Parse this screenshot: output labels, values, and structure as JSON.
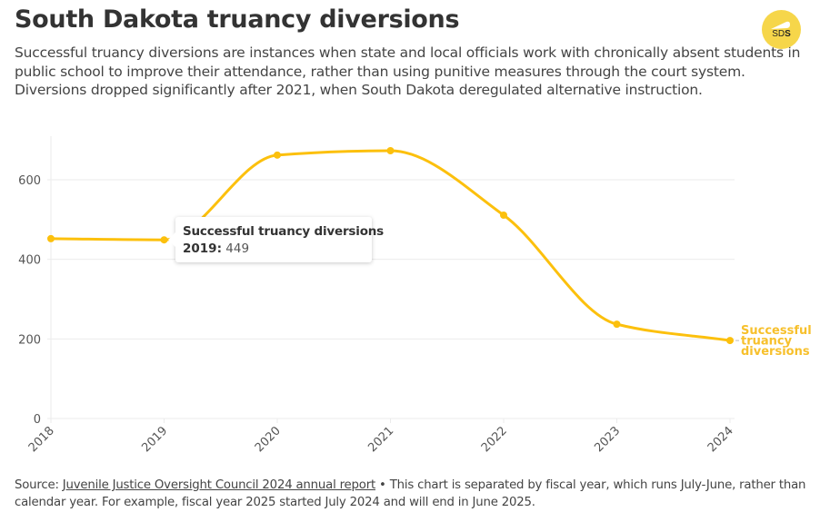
{
  "header": {
    "title": "South Dakota truancy diversions",
    "subtitle": "Successful truancy diversions are instances when state and local officials work with chronically absent students in public school to improve their attendance, rather than using punitive measures through the court system. Diversions dropped significantly after 2021, when South Dakota deregulated alternative instruction.",
    "logo_text_light": "SD",
    "logo_text_bold": "S"
  },
  "tooltip": {
    "title": "Successful truancy diversions",
    "year_label": "2019:",
    "value": "449"
  },
  "footer": {
    "source_prefix": "Source:",
    "source_link": "Juvenile Justice Oversight Council 2024 annual report",
    "note": "• This chart is separated by fiscal year, which runs July-June, rather than calendar year. For example, fiscal year 2025 started July 2024 and will end in June 2025."
  },
  "colors": {
    "series": "#fcc00d",
    "label": "#f7c02c",
    "grid": "#ebebeb",
    "logo": "#f6d64a"
  },
  "chart_data": {
    "type": "line",
    "title": "South Dakota truancy diversions",
    "xlabel": "",
    "ylabel": "",
    "categories": [
      "2018",
      "2019",
      "2020",
      "2021",
      "2022",
      "2023",
      "2024"
    ],
    "series": [
      {
        "name": "Successful truancy diversions",
        "label_lines": [
          "Successful",
          "truancy",
          "diversions"
        ],
        "values": [
          452,
          449,
          662,
          673,
          511,
          237,
          196
        ]
      }
    ],
    "yticks": [
      0,
      200,
      400,
      600
    ],
    "ylim": [
      0,
      700
    ],
    "grid": true,
    "legend": "inline-right",
    "curve": "smooth"
  }
}
